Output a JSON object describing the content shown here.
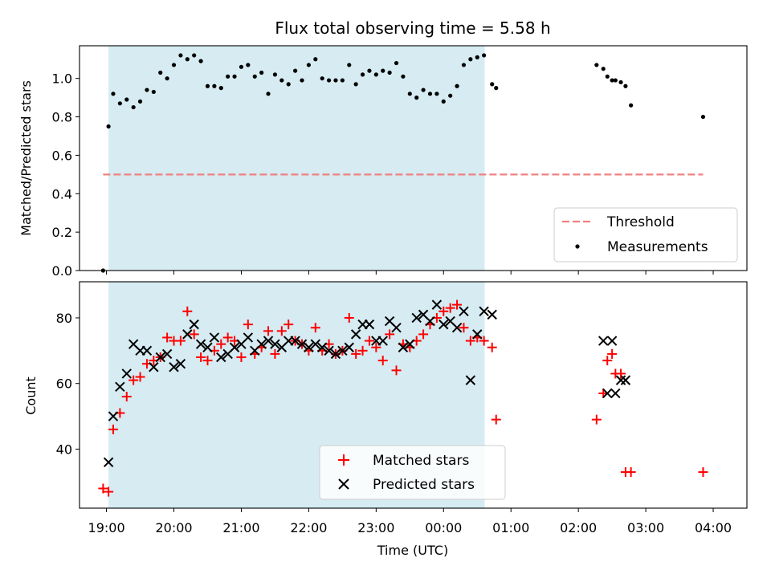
{
  "chart_data": [
    {
      "type": "scatter",
      "title": "Flux total observing time = 5.58 h",
      "ylabel": "Matched/Predicted stars",
      "xlabel": "",
      "ylim": [
        0,
        1.17
      ],
      "yticks": [
        0.0,
        0.2,
        0.4,
        0.6,
        0.8,
        1.0
      ],
      "ytick_labels": [
        "0.0",
        "0.2",
        "0.4",
        "0.6",
        "0.8",
        "1.0"
      ],
      "xlim_hours": [
        18.6,
        28.5
      ],
      "shaded_span_hours": [
        19.03,
        24.61
      ],
      "shade_color": "#add8e6",
      "threshold": {
        "name": "Threshold",
        "y": 0.5,
        "x_range_hours": [
          18.95,
          27.85
        ],
        "color": "#f08080"
      },
      "legend": [
        "Threshold",
        "Measurements"
      ],
      "legend_loc": "lower right",
      "series": [
        {
          "name": "Measurements",
          "color": "#000000",
          "x_hours": [
            18.95,
            19.03,
            19.1,
            19.2,
            19.3,
            19.4,
            19.5,
            19.6,
            19.7,
            19.8,
            19.9,
            20.0,
            20.1,
            20.2,
            20.3,
            20.4,
            20.5,
            20.6,
            20.7,
            20.8,
            20.9,
            21.0,
            21.1,
            21.2,
            21.3,
            21.4,
            21.5,
            21.6,
            21.7,
            21.8,
            21.9,
            22.0,
            22.1,
            22.2,
            22.3,
            22.4,
            22.5,
            22.6,
            22.7,
            22.8,
            22.9,
            23.0,
            23.1,
            23.2,
            23.3,
            23.4,
            23.5,
            23.6,
            23.7,
            23.8,
            23.9,
            24.0,
            24.1,
            24.2,
            24.3,
            24.4,
            24.5,
            24.6,
            24.72,
            24.78,
            26.27,
            26.37,
            26.43,
            26.5,
            26.55,
            26.63,
            26.7,
            26.78,
            27.85
          ],
          "y": [
            0.0,
            0.75,
            0.92,
            0.87,
            0.89,
            0.85,
            0.88,
            0.94,
            0.93,
            1.03,
            1.0,
            1.07,
            1.12,
            1.1,
            1.12,
            1.09,
            0.96,
            0.96,
            0.95,
            1.01,
            1.01,
            1.06,
            1.07,
            1.01,
            1.03,
            0.92,
            1.02,
            0.99,
            0.97,
            1.04,
            0.99,
            1.07,
            1.1,
            1.0,
            0.99,
            0.99,
            0.99,
            1.07,
            0.97,
            1.02,
            1.04,
            1.02,
            1.04,
            1.03,
            1.08,
            1.01,
            0.92,
            0.9,
            0.94,
            0.92,
            0.92,
            0.88,
            0.91,
            0.96,
            1.07,
            1.1,
            1.11,
            1.12,
            0.97,
            0.95,
            1.07,
            1.05,
            1.01,
            0.99,
            0.99,
            0.98,
            0.96,
            0.86,
            0.8
          ]
        }
      ]
    },
    {
      "type": "scatter",
      "title": "",
      "ylabel": "Count",
      "xlabel": "Time (UTC)",
      "ylim": [
        22,
        91
      ],
      "yticks": [
        40,
        60,
        80
      ],
      "ytick_labels": [
        "40",
        "60",
        "80"
      ],
      "xlim_hours": [
        18.6,
        28.5
      ],
      "xticks_hours": [
        19,
        20,
        21,
        22,
        23,
        24,
        25,
        26,
        27,
        28
      ],
      "xtick_labels": [
        "19:00",
        "20:00",
        "21:00",
        "22:00",
        "23:00",
        "00:00",
        "01:00",
        "02:00",
        "03:00",
        "04:00"
      ],
      "legend": [
        "Matched stars",
        "Predicted stars"
      ],
      "legend_loc": "lower center",
      "series": [
        {
          "name": "Matched stars",
          "marker": "+",
          "color": "#ff0000",
          "x_hours": [
            18.95,
            19.03,
            19.1,
            19.2,
            19.3,
            19.4,
            19.5,
            19.6,
            19.7,
            19.8,
            19.9,
            20.0,
            20.1,
            20.2,
            20.3,
            20.4,
            20.5,
            20.6,
            20.7,
            20.8,
            20.9,
            21.0,
            21.1,
            21.2,
            21.3,
            21.4,
            21.5,
            21.6,
            21.7,
            21.8,
            21.9,
            22.0,
            22.1,
            22.2,
            22.3,
            22.4,
            22.5,
            22.6,
            22.7,
            22.8,
            22.9,
            23.0,
            23.1,
            23.2,
            23.3,
            23.4,
            23.5,
            23.6,
            23.7,
            23.8,
            23.9,
            24.0,
            24.1,
            24.2,
            24.3,
            24.4,
            24.5,
            24.6,
            24.72,
            24.78,
            26.27,
            26.37,
            26.43,
            26.5,
            26.55,
            26.63,
            26.7,
            26.78,
            27.85
          ],
          "y": [
            28,
            27,
            46,
            51,
            56,
            61,
            62,
            66,
            67,
            68,
            74,
            73,
            73,
            82,
            75,
            68,
            67,
            70,
            72,
            74,
            73,
            68,
            78,
            69,
            71,
            76,
            69,
            76,
            78,
            73,
            72,
            70,
            77,
            70,
            72,
            69,
            70,
            80,
            69,
            70,
            73,
            71,
            67,
            75,
            64,
            72,
            71,
            73,
            75,
            78,
            80,
            82,
            83,
            84,
            77,
            73,
            74,
            73,
            71,
            49,
            49,
            57,
            67,
            69,
            63,
            63,
            33,
            33,
            33
          ]
        },
        {
          "name": "Predicted stars",
          "marker": "x",
          "color": "#000000",
          "x_hours": [
            19.03,
            19.1,
            19.2,
            19.3,
            19.4,
            19.5,
            19.6,
            19.7,
            19.8,
            19.9,
            20.0,
            20.1,
            20.2,
            20.3,
            20.4,
            20.5,
            20.6,
            20.7,
            20.8,
            20.9,
            21.0,
            21.1,
            21.2,
            21.3,
            21.4,
            21.5,
            21.6,
            21.7,
            21.8,
            21.9,
            22.0,
            22.1,
            22.2,
            22.3,
            22.4,
            22.5,
            22.6,
            22.7,
            22.8,
            22.9,
            23.0,
            23.1,
            23.2,
            23.3,
            23.4,
            23.5,
            23.6,
            23.7,
            23.8,
            23.9,
            24.0,
            24.1,
            24.2,
            24.3,
            24.4,
            24.5,
            24.6,
            24.72,
            26.37,
            26.43,
            26.5,
            26.55,
            26.63,
            26.7
          ],
          "y": [
            36,
            50,
            59,
            63,
            72,
            70,
            70,
            65,
            68,
            69,
            65,
            66,
            75,
            78,
            72,
            71,
            74,
            68,
            69,
            71,
            72,
            74,
            70,
            72,
            73,
            72,
            71,
            73,
            73,
            72,
            71,
            72,
            71,
            70,
            69,
            70,
            71,
            75,
            78,
            78,
            73,
            73,
            79,
            77,
            71,
            72,
            80,
            81,
            79,
            84,
            78,
            79,
            77,
            82,
            61,
            75,
            82,
            81,
            73,
            57,
            73,
            57,
            61,
            61
          ]
        }
      ]
    }
  ]
}
